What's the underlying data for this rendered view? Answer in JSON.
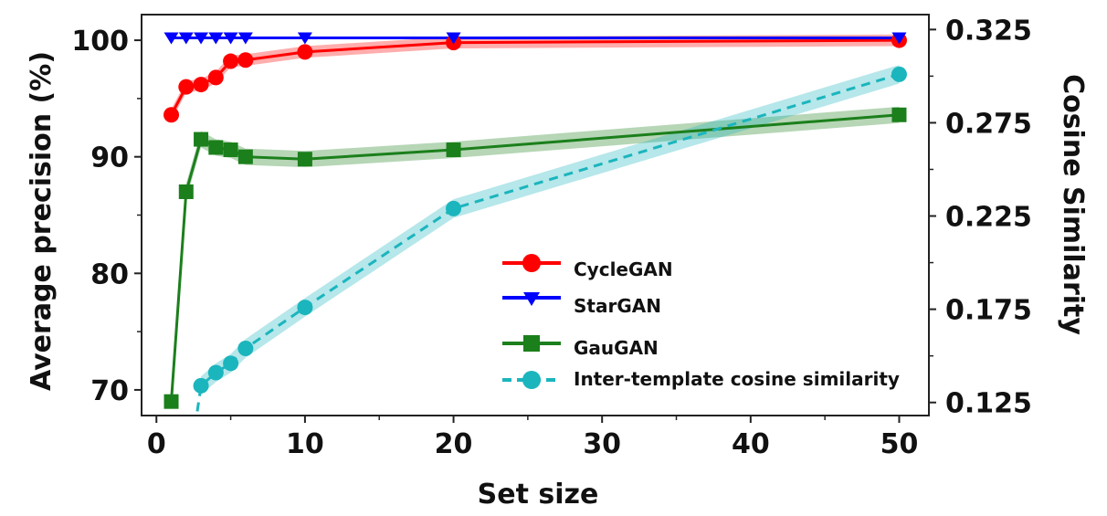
{
  "chart_data": {
    "type": "line",
    "xlabel": "Set size",
    "ylabel": "Average precision (%)",
    "y2label": "Cosine Similarity",
    "x_ticks": [
      0,
      10,
      20,
      30,
      40,
      50
    ],
    "y_ticks": [
      70,
      80,
      90,
      100
    ],
    "y2_ticks": [
      0.125,
      0.175,
      0.225,
      0.275,
      0.325
    ],
    "y2_tick_labels": [
      "0.125",
      "0.175",
      "0.225",
      "0.275",
      "0.325"
    ],
    "xlim": [
      -1,
      52
    ],
    "ylim": [
      67.8,
      102.2
    ],
    "y2lim": [
      0.118,
      0.333
    ],
    "legend_position": "bottom-right",
    "grid": false,
    "series": [
      {
        "name": "CycleGAN",
        "axis": "left",
        "color": "#ff0000",
        "marker": "circle",
        "line": "solid",
        "x": [
          1,
          2,
          3,
          4,
          5,
          6,
          10,
          20,
          50
        ],
        "y": [
          93.6,
          96.0,
          96.2,
          96.8,
          98.2,
          98.3,
          99.0,
          99.8,
          100.0
        ],
        "band": 0.5
      },
      {
        "name": "StarGAN",
        "axis": "left",
        "color": "#0000ff",
        "marker": "triangle-down",
        "line": "solid",
        "x": [
          1,
          2,
          3,
          4,
          5,
          6,
          10,
          20,
          50
        ],
        "y": [
          100.2,
          100.2,
          100.2,
          100.2,
          100.2,
          100.2,
          100.2,
          100.2,
          100.2
        ],
        "band": 0
      },
      {
        "name": "GauGAN",
        "axis": "left",
        "color": "#1b7f1b",
        "marker": "square",
        "line": "solid",
        "x": [
          1,
          2,
          3,
          4,
          5,
          6,
          10,
          20,
          50
        ],
        "y": [
          69.0,
          87.0,
          91.5,
          90.8,
          90.6,
          90.0,
          89.8,
          90.6,
          93.6
        ],
        "band": 0.7
      },
      {
        "name": "Inter-template cosine similarity",
        "axis": "right",
        "color": "#1bb5bd",
        "marker": "circle",
        "line": "dashed",
        "x": [
          3,
          4,
          5,
          6,
          10,
          20,
          50
        ],
        "y": [
          0.134,
          0.141,
          0.146,
          0.154,
          0.176,
          0.229,
          0.301
        ],
        "band": 0.005,
        "lead_in": {
          "x": 2.6,
          "y": 0.112
        }
      }
    ]
  }
}
